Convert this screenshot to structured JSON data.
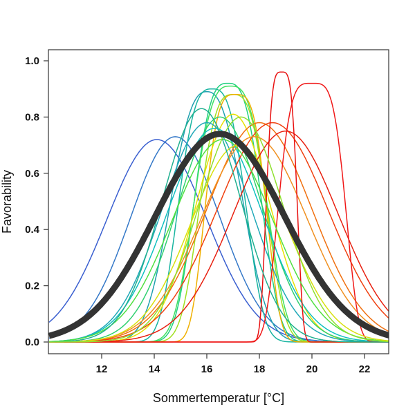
{
  "chart_data": {
    "type": "line",
    "title": "",
    "xlabel": "Sommertemperatur [°C]",
    "ylabel": "Favorability",
    "xlim": [
      10,
      23
    ],
    "ylim": [
      0,
      1
    ],
    "x_ticks": [
      12,
      14,
      16,
      18,
      20,
      22
    ],
    "y_ticks": [
      0.0,
      0.2,
      0.4,
      0.6,
      0.8,
      1.0
    ],
    "x_tick_labels": [
      "12",
      "14",
      "16",
      "18",
      "20",
      "22"
    ],
    "y_tick_labels": [
      "0.0",
      "0.2",
      "0.4",
      "0.6",
      "0.8",
      "1.0"
    ],
    "grid": false,
    "series_note": "Curves approximated as bell shapes: value = peak * exp(-0.5*|(x-center)/spread|^shape)",
    "series": [
      {
        "center": 14.1,
        "peak": 0.72,
        "spread": 1.9,
        "shape": 2,
        "color": "#3a5fd0"
      },
      {
        "center": 14.8,
        "peak": 0.73,
        "spread": 1.7,
        "shape": 2,
        "color": "#3478c8"
      },
      {
        "center": 16.0,
        "peak": 0.89,
        "spread": 1.3,
        "shape": 2.5,
        "color": "#1fa0b0"
      },
      {
        "center": 16.2,
        "peak": 0.9,
        "spread": 1.2,
        "shape": 3,
        "color": "#18b4a0"
      },
      {
        "center": 16.8,
        "peak": 0.92,
        "spread": 1.2,
        "shape": 3,
        "color": "#20d080"
      },
      {
        "center": 16.9,
        "peak": 0.91,
        "spread": 1.3,
        "shape": 3,
        "color": "#40e060"
      },
      {
        "center": 17.0,
        "peak": 0.88,
        "spread": 1.2,
        "shape": 3,
        "color": "#a0e020"
      },
      {
        "center": 17.1,
        "peak": 0.88,
        "spread": 1.1,
        "shape": 3.5,
        "color": "#f0b000"
      },
      {
        "center": 17.0,
        "peak": 0.81,
        "spread": 1.4,
        "shape": 2,
        "color": "#e8e000"
      },
      {
        "center": 16.5,
        "peak": 0.8,
        "spread": 1.6,
        "shape": 2,
        "color": "#30d070"
      },
      {
        "center": 16.0,
        "peak": 0.78,
        "spread": 1.7,
        "shape": 2,
        "color": "#20a8b8"
      },
      {
        "center": 16.3,
        "peak": 0.76,
        "spread": 1.8,
        "shape": 2,
        "color": "#10c0c0"
      },
      {
        "center": 18.0,
        "peak": 0.78,
        "spread": 2.0,
        "shape": 2,
        "color": "#f07010"
      },
      {
        "center": 18.5,
        "peak": 0.78,
        "spread": 2.1,
        "shape": 2,
        "color": "#f04010"
      },
      {
        "center": 17.8,
        "peak": 0.73,
        "spread": 2.0,
        "shape": 2,
        "color": "#f09020"
      },
      {
        "center": 19.0,
        "peak": 0.75,
        "spread": 2.0,
        "shape": 2,
        "color": "#e82010"
      },
      {
        "center": 18.85,
        "peak": 0.96,
        "spread": 0.55,
        "shape": 4,
        "color": "#e81010"
      },
      {
        "center": 20.0,
        "peak": 0.92,
        "spread": 1.2,
        "shape": 4,
        "color": "#f01818"
      },
      {
        "center": 16.6,
        "peak": 0.72,
        "spread": 1.9,
        "shape": 2,
        "color": "#50e040"
      },
      {
        "center": 17.2,
        "peak": 0.7,
        "spread": 1.8,
        "shape": 2,
        "color": "#d8e010"
      },
      {
        "center": 15.8,
        "peak": 0.83,
        "spread": 1.5,
        "shape": 2,
        "color": "#20b090"
      },
      {
        "center": 17.3,
        "peak": 0.8,
        "spread": 1.6,
        "shape": 2,
        "color": "#90e030"
      },
      {
        "center": 16.5,
        "peak": 0.74,
        "spread": 2.45,
        "shape": 2,
        "color": "#333333",
        "mean": true
      }
    ]
  }
}
